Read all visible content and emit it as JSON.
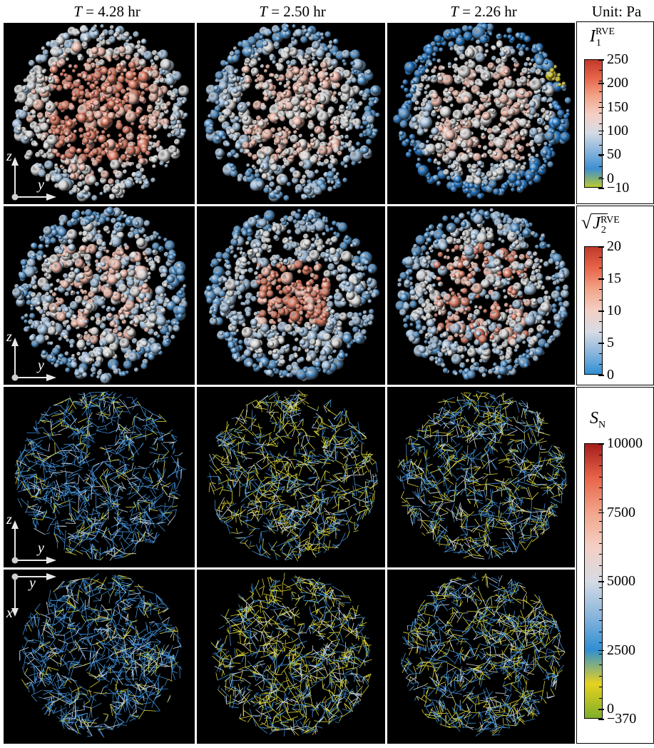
{
  "columns": [
    {
      "T_label": "T",
      "T_value": "= 4.28 hr"
    },
    {
      "T_label": "T",
      "T_value": "= 2.50 hr"
    },
    {
      "T_label": "T",
      "T_value": "= 2.26 hr"
    }
  ],
  "unit": "Unit: Pa",
  "colorbars": [
    {
      "id": "I1",
      "title_main": "I",
      "title_sup": "RVE",
      "title_sub": "1",
      "ticks": [
        "250",
        "200",
        "150",
        "100",
        "50",
        "0",
        "−10"
      ],
      "colors": [
        "#c0392b",
        "#e8654a",
        "#f2a58a",
        "#f4cfc4",
        "#d6dbe4",
        "#8bb6dd",
        "#3d8fd1",
        "#b9c930"
      ]
    },
    {
      "id": "J2",
      "title_main": "J",
      "title_sup": "RVE",
      "title_sub": "2",
      "ticks": [
        "20",
        "15",
        "10",
        "5",
        "0"
      ],
      "colors": [
        "#c0392b",
        "#e8654a",
        "#f2a58a",
        "#f4cfc4",
        "#d6dbe4",
        "#8bb6dd",
        "#2f8fd3"
      ]
    },
    {
      "id": "SN",
      "title_main": "S",
      "title_sub": "N",
      "ticks": [
        "10000",
        "7500",
        "5000",
        "2500",
        "0",
        "−370"
      ],
      "colors": [
        "#a51d1d",
        "#e8654a",
        "#f2a58a",
        "#f4cfc4",
        "#d6dbe4",
        "#8bb6dd",
        "#2f8fd3",
        "#e6d21f",
        "#7fae2a"
      ]
    }
  ],
  "axes": {
    "z": "z",
    "y": "y",
    "x": "x"
  },
  "palette": {
    "red": "#d8765e",
    "pink": "#e9b3a4",
    "white": "#d6d6d6",
    "lightblue": "#9dbbd8",
    "blue": "#4f8fc7",
    "deepblue": "#2176c6",
    "yellow": "#d6c72a",
    "force_blue": "#3f8cd0",
    "force_yellow": "#d8d337",
    "force_white": "#cfd5dd"
  },
  "panels": [
    {
      "row": 0,
      "col": 0,
      "kind": "particles",
      "field": "I1",
      "level": "high"
    },
    {
      "row": 0,
      "col": 1,
      "kind": "particles",
      "field": "I1",
      "level": "mid"
    },
    {
      "row": 0,
      "col": 2,
      "kind": "particles",
      "field": "I1",
      "level": "low"
    },
    {
      "row": 1,
      "col": 0,
      "kind": "particles",
      "field": "J2",
      "level": "mixed"
    },
    {
      "row": 1,
      "col": 1,
      "kind": "particles",
      "field": "J2",
      "level": "core"
    },
    {
      "row": 1,
      "col": 2,
      "kind": "particles",
      "field": "J2",
      "level": "patchy"
    },
    {
      "row": 2,
      "col": 0,
      "kind": "network",
      "field": "SN",
      "level": "blue"
    },
    {
      "row": 2,
      "col": 1,
      "kind": "network",
      "field": "SN",
      "level": "yellow"
    },
    {
      "row": 2,
      "col": 2,
      "kind": "network",
      "field": "SN",
      "level": "mixed"
    },
    {
      "row": 3,
      "col": 0,
      "kind": "network",
      "field": "SN",
      "level": "blue"
    },
    {
      "row": 3,
      "col": 1,
      "kind": "network",
      "field": "SN",
      "level": "yellow"
    },
    {
      "row": 3,
      "col": 2,
      "kind": "network",
      "field": "SN",
      "level": "mixed"
    }
  ]
}
